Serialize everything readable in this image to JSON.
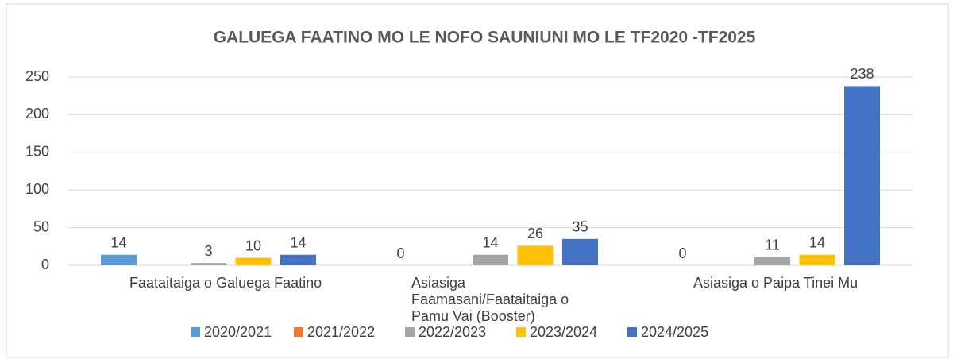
{
  "chart_data": {
    "type": "bar",
    "title": "GALUEGA FAATINO MO LE NOFO SAUNIUNI MO LE TF2020 -TF2025",
    "categories": [
      "Faataitaiga o Galuega Faatino",
      "Asiasiga Faamasani/Faataitaiga o Pamu Vai (Booster)",
      "Asiasiga o Paipa Tinei Mu"
    ],
    "series": [
      {
        "name": "2020/2021",
        "color": "#5b9bd5",
        "values": [
          14,
          0,
          0
        ]
      },
      {
        "name": "2021/2022",
        "color": "#ed7d31",
        "values": [
          null,
          null,
          null
        ]
      },
      {
        "name": "2022/2023",
        "color": "#a5a5a5",
        "values": [
          3,
          14,
          11
        ]
      },
      {
        "name": "2023/2024",
        "color": "#ffc000",
        "values": [
          10,
          26,
          14
        ]
      },
      {
        "name": "2024/2025",
        "color": "#4472c4",
        "values": [
          14,
          35,
          238
        ]
      }
    ],
    "ylim": [
      0,
      250
    ],
    "yticks": [
      0,
      50,
      100,
      150,
      200,
      250
    ],
    "grid": true,
    "legend": "bottom"
  }
}
